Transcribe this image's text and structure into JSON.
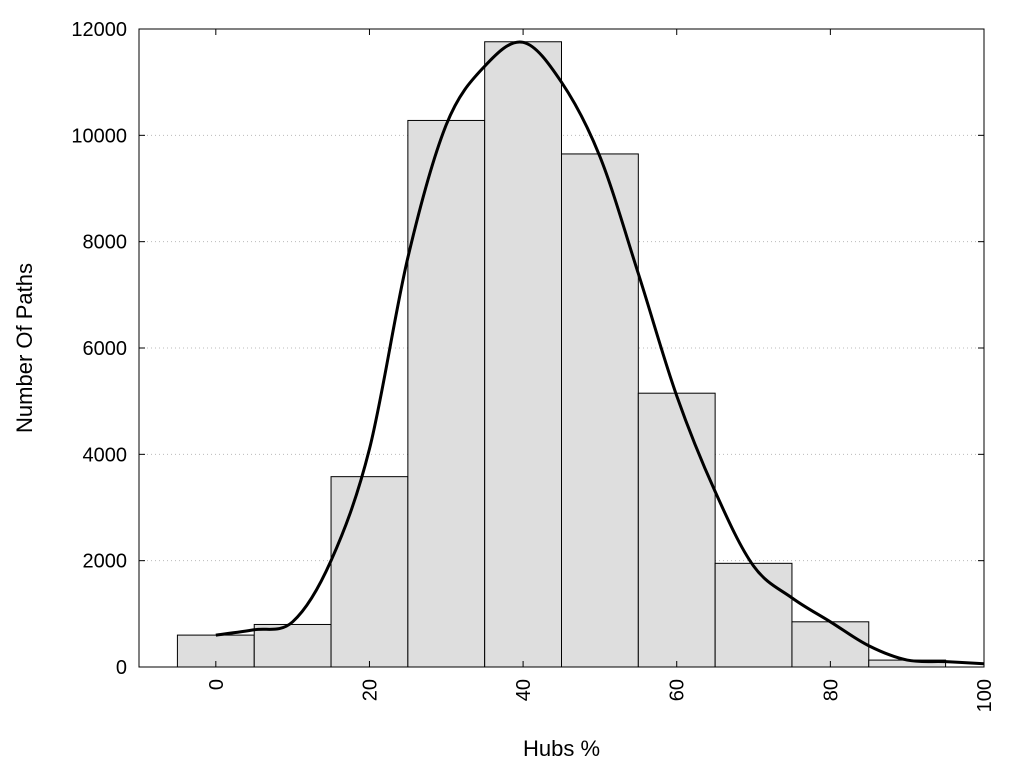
{
  "chart_data": {
    "type": "bar",
    "title": "",
    "xlabel": "Hubs %",
    "ylabel": "Number Of Paths",
    "xlim": [
      -10,
      100
    ],
    "ylim": [
      0,
      12000
    ],
    "x_ticks": [
      "0",
      "20",
      "40",
      "60",
      "80",
      "100"
    ],
    "y_ticks": [
      "0",
      "2000",
      "4000",
      "6000",
      "8000",
      "10000",
      "12000"
    ],
    "grid": "horizontal dotted",
    "legend": "none",
    "bin_width": 10,
    "bins": [
      0,
      10,
      20,
      30,
      40,
      50,
      60,
      70,
      80,
      90
    ],
    "values": [
      600,
      800,
      3580,
      10280,
      11760,
      9650,
      5150,
      1950,
      850,
      130
    ],
    "curve": {
      "x": [
        0,
        5,
        10,
        15,
        20,
        25,
        30,
        35,
        40,
        45,
        50,
        55,
        60,
        65,
        70,
        75,
        80,
        85,
        90,
        95,
        100
      ],
      "y": [
        600,
        700,
        850,
        2000,
        4100,
        7700,
        10200,
        11300,
        11750,
        11000,
        9600,
        7400,
        5100,
        3300,
        1900,
        1300,
        850,
        400,
        130,
        100,
        60
      ]
    },
    "colors": {
      "bar_fill": "#dedede",
      "bar_stroke": "#000000",
      "curve": "#000000",
      "grid": "#bbbbbb"
    }
  }
}
